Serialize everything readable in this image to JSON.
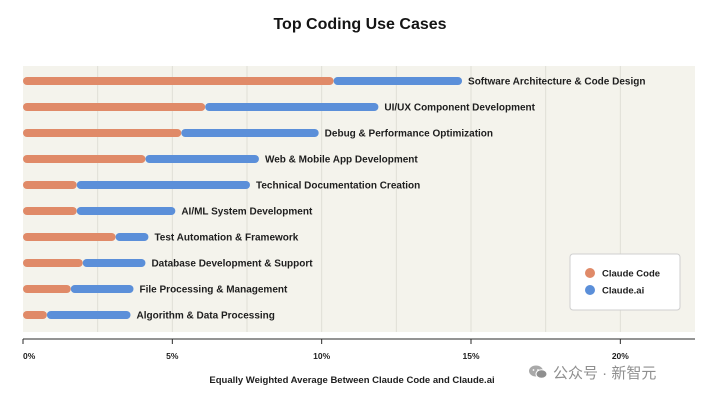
{
  "chart_data": {
    "type": "bar",
    "stacked": true,
    "orientation": "horizontal",
    "title": "Top Coding Use Cases",
    "xlabel": "Equally Weighted Average Between Claude Code and Claude.ai",
    "ylabel": "",
    "xlim": [
      0,
      22.5
    ],
    "x_ticks": [
      "0%",
      "5%",
      "10%",
      "15%",
      "20%"
    ],
    "x_tick_values": [
      0,
      5,
      10,
      15,
      20
    ],
    "grid": true,
    "legend_position": "bottom-right",
    "categories": [
      "Software Architecture & Code Design",
      "UI/UX Component Development",
      "Debug & Performance Optimization",
      "Web & Mobile App Development",
      "Technical Documentation Creation",
      "AI/ML System Development",
      "Test Automation & Framework",
      "Database Development & Support",
      "File Processing & Management",
      "Algorithm & Data Processing"
    ],
    "series": [
      {
        "name": "Claude Code",
        "color": "#e08a68",
        "values": [
          10.4,
          6.1,
          5.3,
          4.1,
          1.8,
          1.8,
          3.1,
          2.0,
          1.6,
          0.8
        ]
      },
      {
        "name": "Claude.ai",
        "color": "#5b8fd9",
        "values": [
          4.3,
          5.8,
          4.6,
          3.8,
          5.8,
          3.3,
          1.1,
          2.1,
          2.1,
          2.8
        ]
      }
    ]
  },
  "watermark": {
    "text": "公众号 · 新智元",
    "icon": "wechat-icon"
  }
}
